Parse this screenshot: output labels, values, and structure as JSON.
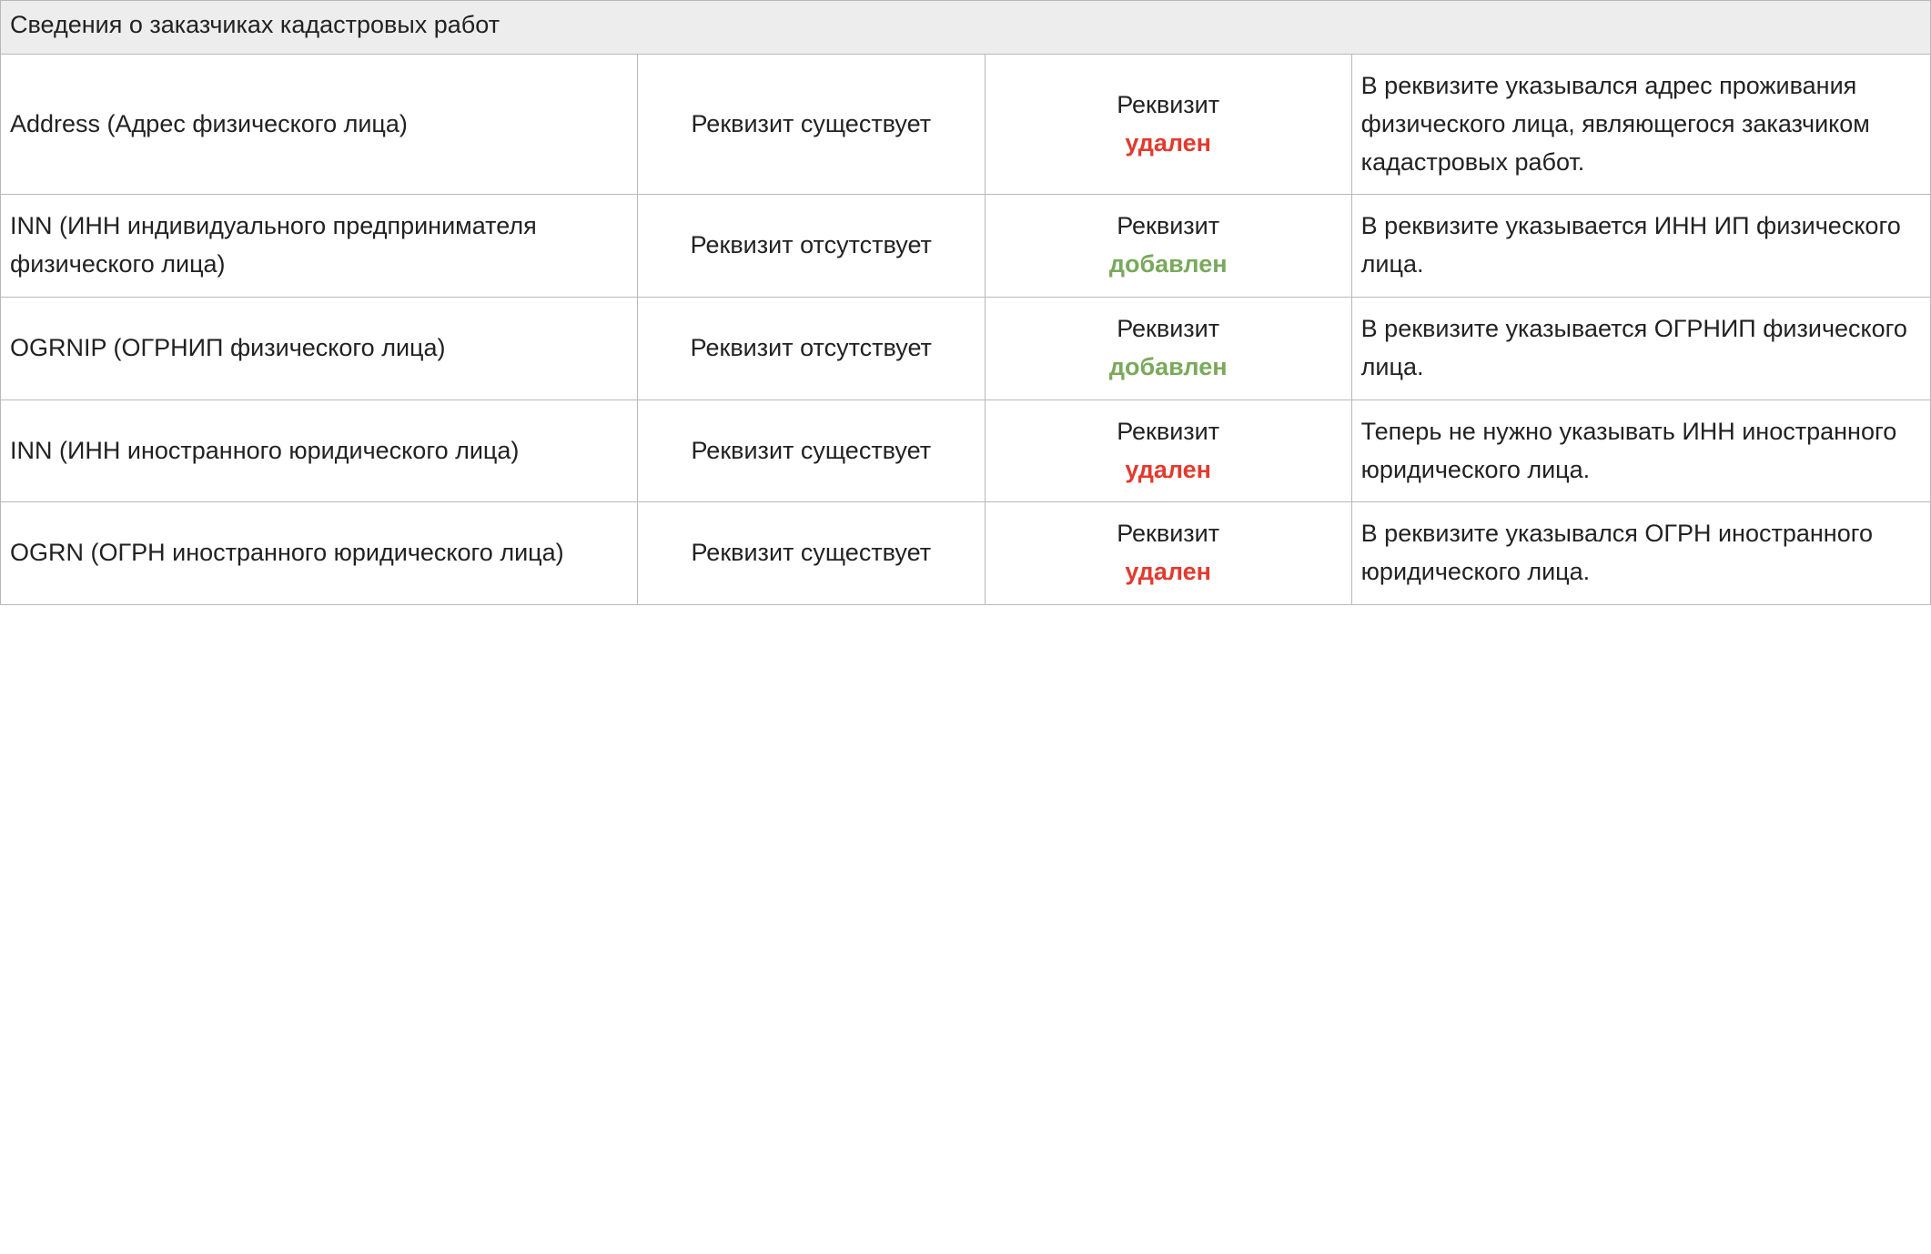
{
  "table": {
    "type": "table",
    "background_color": "#ffffff",
    "border_color": "#b8b8b8",
    "header_background": "#ededed",
    "text_color": "#222222",
    "font_size_pt": 20,
    "column_widths_pct": [
      33,
      18,
      19,
      30
    ],
    "column_alignments": [
      "left",
      "center",
      "center",
      "left"
    ],
    "status_colors": {
      "added": "#7aa95c",
      "removed": "#e23a2e"
    },
    "section_title": "Сведения о заказчиках кадастровых работ",
    "after_prefix": "Реквизит",
    "status_labels": {
      "added": "добавлен",
      "removed": "удален"
    },
    "rows": [
      {
        "name": "Address (Адрес физического лица)",
        "before": "Реквизит существует",
        "after_status": "removed",
        "note": "В реквизите указывался адрес проживания физического лица, являющегося заказчиком кадастровых работ."
      },
      {
        "name": "INN (ИНН индивидуального предпринимателя физического лица)",
        "before": "Реквизит отсутствует",
        "after_status": "added",
        "note": "В реквизите указывается ИНН ИП физического лица."
      },
      {
        "name": "OGRNIP (ОГРНИП физического лица)",
        "before": "Реквизит отсутствует",
        "after_status": "added",
        "note": "В реквизите указывается ОГРНИП физического лица."
      },
      {
        "name": "INN (ИНН иностранного юридического лица)",
        "before": "Реквизит существует",
        "after_status": "removed",
        "note": "Теперь не нужно указывать ИНН иностранного юридического лица."
      },
      {
        "name": "OGRN (ОГРН иностранного юридического лица)",
        "before": "Реквизит существует",
        "after_status": "removed",
        "note": "В реквизите указывался ОГРН иностранного юридического лица."
      }
    ]
  }
}
